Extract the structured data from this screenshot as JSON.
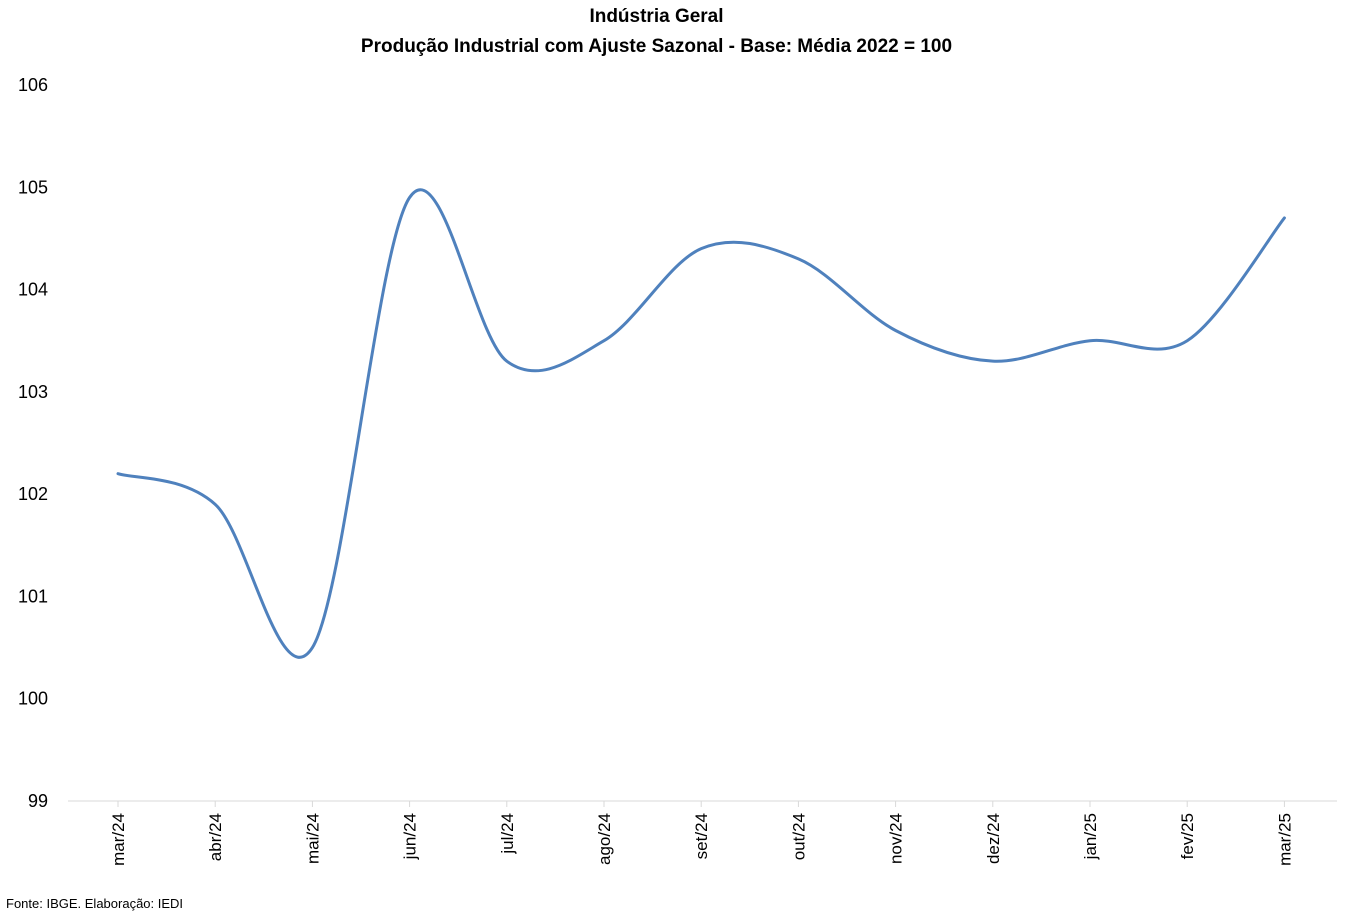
{
  "chart_data": {
    "type": "line",
    "title": "Indústria Geral",
    "subtitle": "Produção Industrial com Ajuste Sazonal - Base: Média 2022 = 100",
    "xlabel": "",
    "ylabel": "",
    "categories": [
      "mar/24",
      "abr/24",
      "mai/24",
      "jun/24",
      "jul/24",
      "ago/24",
      "set/24",
      "out/24",
      "nov/24",
      "dez/24",
      "jan/25",
      "fev/25",
      "mar/25"
    ],
    "series": [
      {
        "values": [
          102.2,
          101.9,
          100.5,
          104.9,
          103.3,
          103.5,
          104.4,
          104.3,
          103.6,
          103.3,
          103.5,
          103.5,
          104.7
        ]
      }
    ],
    "ylim": [
      99,
      106
    ],
    "yticks": [
      99,
      100,
      101,
      102,
      103,
      104,
      105,
      106
    ],
    "grid": false,
    "legend": "none",
    "line_color": "#4F81BD",
    "smooth": true
  },
  "source": "Fonte: IBGE. Elaboração: IEDI"
}
